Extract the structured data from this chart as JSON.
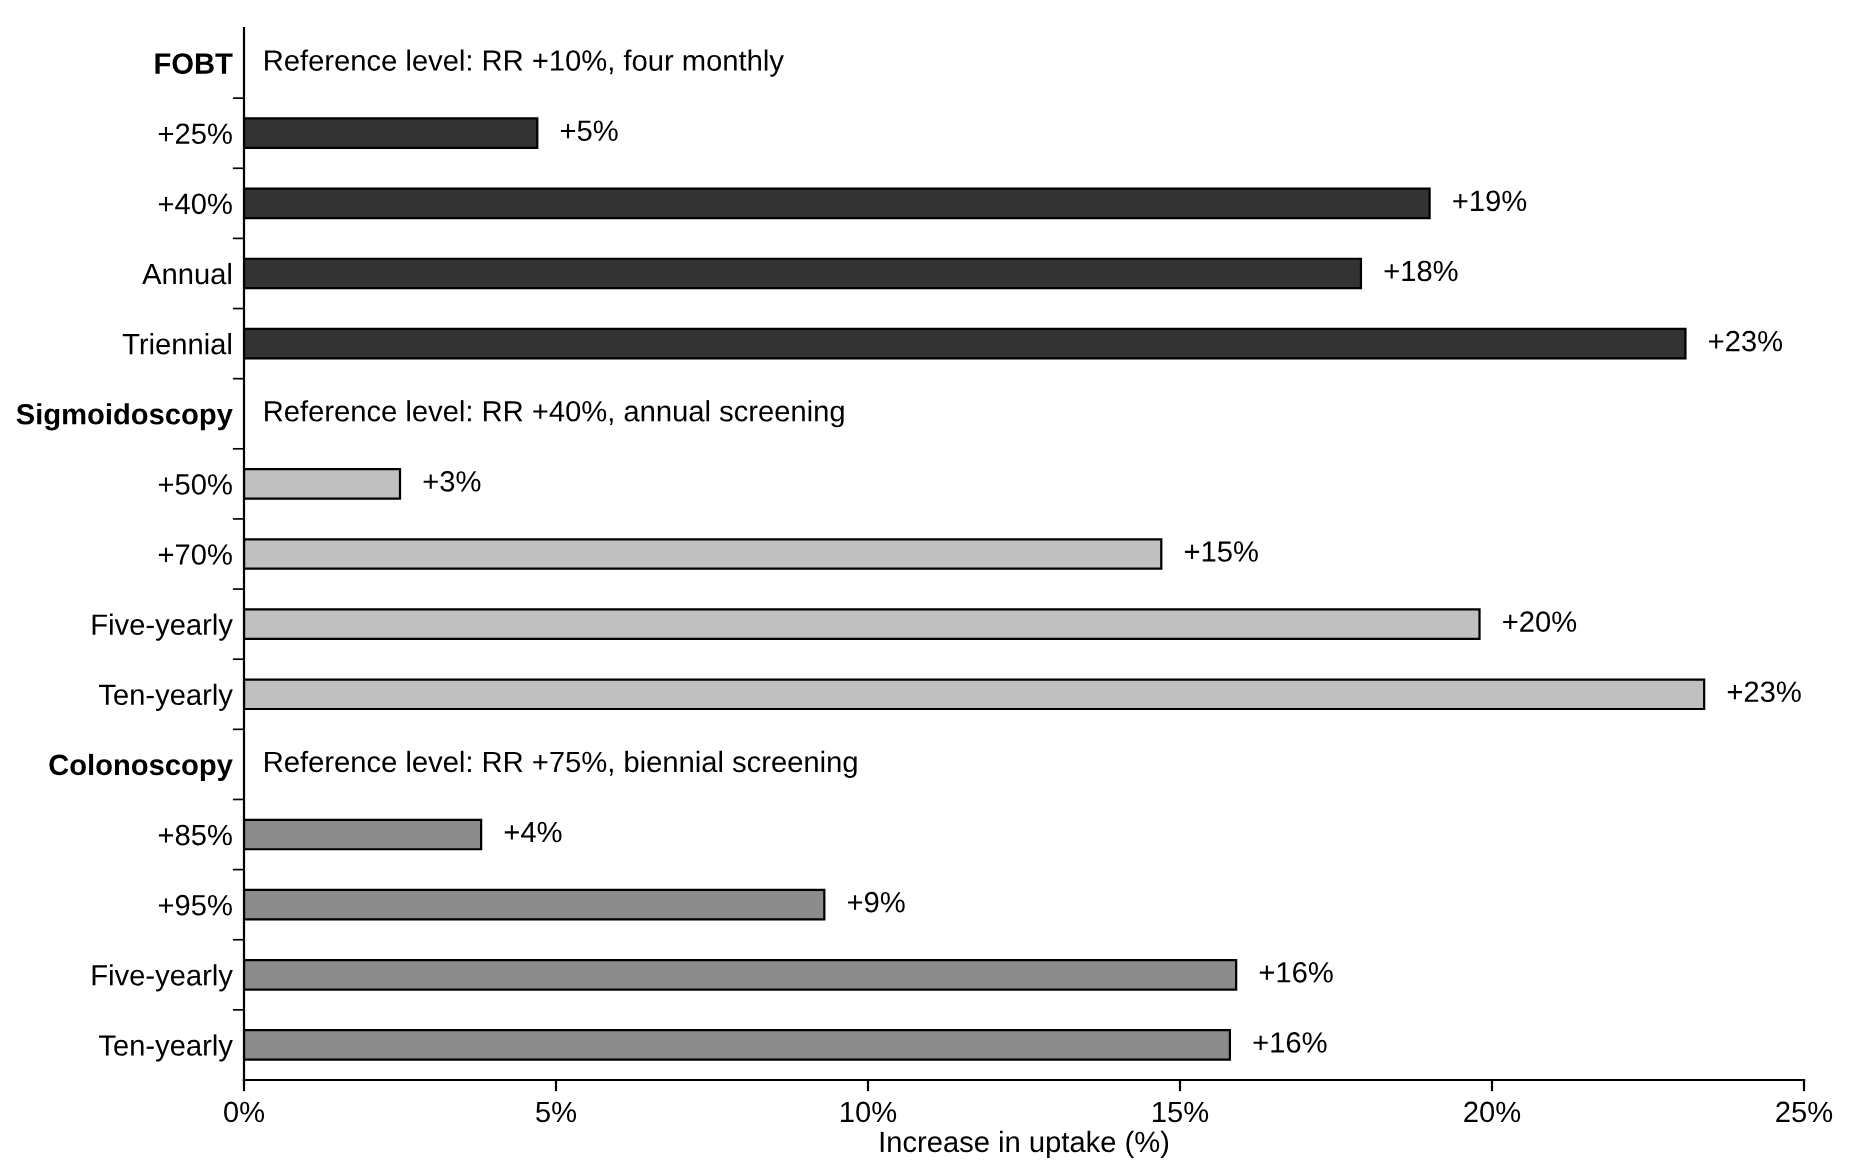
{
  "chart_data": {
    "type": "bar",
    "orientation": "horizontal",
    "xlabel": "Increase in uptake (%)",
    "categories": [
      "FOBT",
      "+25%",
      "+40%",
      "Annual",
      "Triennial",
      "Sigmoidoscopy",
      "+50%",
      "+70%",
      "Five-yearly",
      "Ten-yearly",
      "Colonoscopy",
      "+85%",
      "+95%",
      "Five-yearly",
      "Ten-yearly"
    ],
    "values": [
      null,
      4.7,
      19.0,
      17.9,
      23.1,
      null,
      2.5,
      14.7,
      19.8,
      23.4,
      null,
      3.8,
      9.3,
      15.9,
      15.8
    ],
    "colors": [
      null,
      "#333333",
      "#333333",
      "#333333",
      "#333333",
      null,
      "#c0c0c0",
      "#c0c0c0",
      "#c0c0c0",
      "#c0c0c0",
      null,
      "#8c8c8c",
      "#8c8c8c",
      "#8c8c8c",
      "#8c8c8c"
    ],
    "value_labels": [
      null,
      "+5%",
      "+19%",
      "+18%",
      "+23%",
      null,
      "+3%",
      "+15%",
      "+20%",
      "+23%",
      null,
      "+4%",
      "+9%",
      "+16%",
      "+16%"
    ],
    "annotations": [
      "Reference level: RR +10%, four monthly",
      "Reference level: RR +40%, annual screening",
      "Reference level: RR +75%, biennial screening"
    ],
    "xlim": [
      0,
      25
    ],
    "xticks": [
      {
        "value": 0,
        "label": "0%"
      },
      {
        "value": 5,
        "label": "5%"
      },
      {
        "value": 10,
        "label": "10%"
      },
      {
        "value": 15,
        "label": "15%"
      },
      {
        "value": 20,
        "label": "20%"
      },
      {
        "value": 25,
        "label": "25%"
      }
    ],
    "grid": false,
    "legend": false
  }
}
